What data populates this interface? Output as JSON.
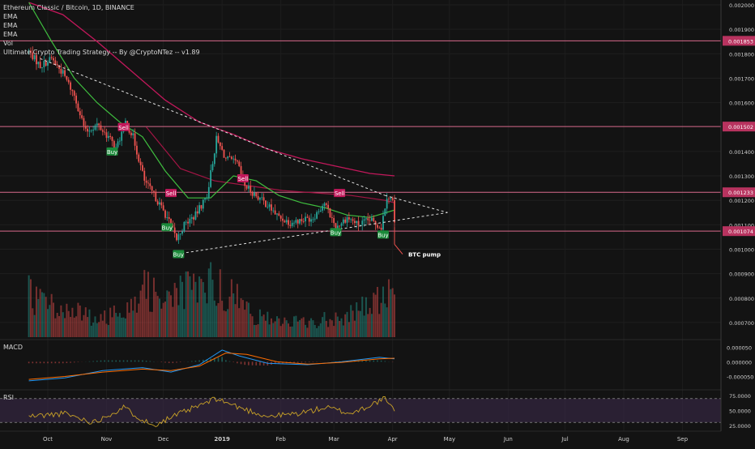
{
  "legend": {
    "title": "Ethereum Classic / Bitcoin, 1D, BINANCE",
    "indicators": [
      "EMA",
      "EMA",
      "EMA",
      "Vol",
      "Ultimate Crypto Trading Strategy -- By @CryptoNTez -- v1.89"
    ]
  },
  "annotation": {
    "text": "BTC pump"
  },
  "colors": {
    "background": "#131313",
    "up": "#26a69a",
    "down": "#ef5350",
    "ema_fast": "#3fbf3f",
    "ema_slow": "#c2185b",
    "hline": "#d76a8c",
    "buy": "#1b8a3a",
    "sell": "#c2185b",
    "macd": "#2196f3",
    "signal": "#ff6d00",
    "rsi": "#c9a227",
    "rsi_band": "#3a2a4a"
  },
  "price_axis": {
    "range": [
      0.00064,
      0.00202
    ],
    "ticks": [
      "0.002000",
      "0.001900",
      "0.001800",
      "0.001700",
      "0.001600",
      "0.001400",
      "0.001300",
      "0.001200",
      "0.001100",
      "0.001000",
      "0.000900",
      "0.000800",
      "0.000700"
    ],
    "tick_values": [
      0.002,
      0.0019,
      0.0018,
      0.0017,
      0.0016,
      0.0014,
      0.0013,
      0.0012,
      0.0011,
      0.001,
      0.0009,
      0.0008,
      0.0007
    ]
  },
  "levels": [
    {
      "label": "0.001853",
      "value": 0.001853
    },
    {
      "label": "0.001502",
      "value": 0.001502
    },
    {
      "label": "0.001233",
      "value": 0.001233
    },
    {
      "label": "0.001074",
      "value": 0.001074
    }
  ],
  "time_axis": {
    "labels": [
      "Oct",
      "Nov",
      "Dec",
      "2019",
      "Feb",
      "Mar",
      "Apr",
      "May",
      "Jun",
      "Jul",
      "Aug",
      "Sep"
    ],
    "bold": [
      "2019"
    ]
  },
  "macd_axis": {
    "ticks": [
      "0.000050",
      "0.000000",
      "-0.000050"
    ],
    "range": [
      -9e-05,
      7e-05
    ],
    "tick_values": [
      5e-05,
      0,
      -5e-05
    ]
  },
  "rsi_axis": {
    "ticks": [
      "75.0000",
      "50.0000",
      "25.0000"
    ],
    "range": [
      18,
      82
    ],
    "tick_values": [
      75,
      50,
      25
    ]
  },
  "chart_data": {
    "type": "candlestick",
    "title": "Ethereum Classic / Bitcoin, 1D, BINANCE",
    "date_range": [
      "2018-09-21",
      "2019-04-02"
    ],
    "signals": [
      {
        "type": "Buy",
        "date": "2018-11-04",
        "price": 0.0014
      },
      {
        "type": "Sell",
        "date": "2018-11-10",
        "price": 0.0015
      },
      {
        "type": "Sell",
        "date": "2018-12-05",
        "price": 0.00123
      },
      {
        "type": "Buy",
        "date": "2018-12-03",
        "price": 0.00109
      },
      {
        "type": "Buy",
        "date": "2018-12-09",
        "price": 0.00098
      },
      {
        "type": "Sell",
        "date": "2019-01-12",
        "price": 0.00129
      },
      {
        "type": "Sell",
        "date": "2019-03-04",
        "price": 0.00123
      },
      {
        "type": "Buy",
        "date": "2019-03-02",
        "price": 0.00107
      },
      {
        "type": "Buy",
        "date": "2019-03-27",
        "price": 0.00106
      }
    ],
    "trendlines": [
      {
        "from": [
          "2018-09-27",
          0.00178
        ],
        "to": [
          "2019-03-28",
          0.00122
        ]
      },
      {
        "from": [
          "2018-12-08",
          0.00098
        ],
        "to": [
          "2019-04-30",
          0.00115
        ]
      }
    ],
    "series_control_points": {
      "close": [
        [
          "2018-09-21",
          0.00181
        ],
        [
          "2018-09-27",
          0.00175
        ],
        [
          "2018-10-03",
          0.00178
        ],
        [
          "2018-10-09",
          0.00172
        ],
        [
          "2018-10-15",
          0.00163
        ],
        [
          "2018-10-21",
          0.00148
        ],
        [
          "2018-10-27",
          0.00151
        ],
        [
          "2018-11-02",
          0.00146
        ],
        [
          "2018-11-06",
          0.00141
        ],
        [
          "2018-11-11",
          0.00152
        ],
        [
          "2018-11-15",
          0.00146
        ],
        [
          "2018-11-21",
          0.00128
        ],
        [
          "2018-11-27",
          0.00121
        ],
        [
          "2018-12-03",
          0.00113
        ],
        [
          "2018-12-08",
          0.00104
        ],
        [
          "2018-12-12",
          0.0011
        ],
        [
          "2018-12-18",
          0.00114
        ],
        [
          "2018-12-24",
          0.00122
        ],
        [
          "2018-12-29",
          0.00145
        ],
        [
          "2019-01-03",
          0.00137
        ],
        [
          "2019-01-09",
          0.00135
        ],
        [
          "2019-01-13",
          0.00126
        ],
        [
          "2019-01-19",
          0.00122
        ],
        [
          "2019-01-25",
          0.00118
        ],
        [
          "2019-01-31",
          0.00113
        ],
        [
          "2019-02-06",
          0.00111
        ],
        [
          "2019-02-12",
          0.00112
        ],
        [
          "2019-02-18",
          0.00113
        ],
        [
          "2019-02-24",
          0.00119
        ],
        [
          "2019-03-02",
          0.00109
        ],
        [
          "2019-03-08",
          0.00113
        ],
        [
          "2019-03-14",
          0.0011
        ],
        [
          "2019-03-20",
          0.00112
        ],
        [
          "2019-03-26",
          0.00109
        ],
        [
          "2019-03-29",
          0.00122
        ],
        [
          "2019-04-01",
          0.0012
        ],
        [
          "2019-04-02",
          0.0011
        ]
      ],
      "ema_fast": [
        [
          "2018-09-21",
          0.00201
        ],
        [
          "2018-10-03",
          0.00185
        ],
        [
          "2018-10-15",
          0.0017
        ],
        [
          "2018-10-27",
          0.0016
        ],
        [
          "2018-11-08",
          0.00152
        ],
        [
          "2018-11-20",
          0.00146
        ],
        [
          "2018-12-02",
          0.00132
        ],
        [
          "2018-12-14",
          0.00121
        ],
        [
          "2018-12-26",
          0.00121
        ],
        [
          "2019-01-07",
          0.0013
        ],
        [
          "2019-01-19",
          0.00128
        ],
        [
          "2019-01-31",
          0.00122
        ],
        [
          "2019-02-12",
          0.00119
        ],
        [
          "2019-02-24",
          0.00117
        ],
        [
          "2019-03-08",
          0.00114
        ],
        [
          "2019-03-20",
          0.00113
        ],
        [
          "2019-04-02",
          0.00116
        ]
      ],
      "ema_slow": [
        [
          "2018-09-21",
          0.00201
        ],
        [
          "2018-10-09",
          0.00196
        ],
        [
          "2018-10-27",
          0.00185
        ],
        [
          "2018-11-14",
          0.00173
        ],
        [
          "2018-12-02",
          0.00161
        ],
        [
          "2018-12-20",
          0.00152
        ],
        [
          "2019-01-07",
          0.00147
        ],
        [
          "2019-01-25",
          0.00141
        ],
        [
          "2019-02-12",
          0.00137
        ],
        [
          "2019-03-02",
          0.00134
        ],
        [
          "2019-03-20",
          0.00131
        ],
        [
          "2019-04-02",
          0.0013
        ]
      ],
      "ema_mid": [
        [
          "2018-11-22",
          0.0015
        ],
        [
          "2018-12-10",
          0.00133
        ],
        [
          "2018-12-28",
          0.00128
        ],
        [
          "2019-01-15",
          0.00126
        ],
        [
          "2019-02-02",
          0.00124
        ],
        [
          "2019-02-20",
          0.00123
        ],
        [
          "2019-03-10",
          0.00122
        ],
        [
          "2019-03-28",
          0.0012
        ],
        [
          "2019-04-02",
          0.00119
        ]
      ],
      "volume_relative": [
        [
          "2018-09-21",
          0.55
        ],
        [
          "2018-10-10",
          0.35
        ],
        [
          "2018-10-30",
          0.22
        ],
        [
          "2018-11-20",
          0.6
        ],
        [
          "2018-12-08",
          0.55
        ],
        [
          "2018-12-29",
          0.7
        ],
        [
          "2019-01-20",
          0.25
        ],
        [
          "2019-02-15",
          0.18
        ],
        [
          "2019-03-10",
          0.3
        ],
        [
          "2019-03-30",
          0.55
        ],
        [
          "2019-04-02",
          0.4
        ]
      ],
      "macd": [
        [
          "2018-09-21",
          -6.5e-05
        ],
        [
          "2018-10-10",
          -5.5e-05
        ],
        [
          "2018-10-30",
          -3e-05
        ],
        [
          "2018-11-20",
          -2e-05
        ],
        [
          "2018-12-05",
          -3.5e-05
        ],
        [
          "2018-12-20",
          -1e-05
        ],
        [
          "2019-01-01",
          4e-05
        ],
        [
          "2019-01-10",
          2e-05
        ],
        [
          "2019-01-25",
          -5e-06
        ],
        [
          "2019-02-15",
          -1e-05
        ],
        [
          "2019-03-05",
          0.0
        ],
        [
          "2019-03-25",
          1.5e-05
        ],
        [
          "2019-04-02",
          1e-05
        ]
      ],
      "signal": [
        [
          "2018-09-21",
          -6e-05
        ],
        [
          "2018-10-10",
          -5e-05
        ],
        [
          "2018-10-30",
          -3.5e-05
        ],
        [
          "2018-11-20",
          -2.5e-05
        ],
        [
          "2018-12-05",
          -3e-05
        ],
        [
          "2018-12-20",
          -1.5e-05
        ],
        [
          "2019-01-03",
          3e-05
        ],
        [
          "2019-01-14",
          2.5e-05
        ],
        [
          "2019-01-30",
          0.0
        ],
        [
          "2019-02-15",
          -8e-06
        ],
        [
          "2019-03-05",
          -2e-06
        ],
        [
          "2019-03-25",
          1e-05
        ],
        [
          "2019-04-02",
          1.2e-05
        ]
      ],
      "rsi": [
        [
          "2018-09-21",
          40
        ],
        [
          "2018-10-10",
          45
        ],
        [
          "2018-10-25",
          30
        ],
        [
          "2018-11-10",
          55
        ],
        [
          "2018-11-25",
          25
        ],
        [
          "2018-12-10",
          45
        ],
        [
          "2018-12-29",
          70
        ],
        [
          "2019-01-10",
          55
        ],
        [
          "2019-01-25",
          40
        ],
        [
          "2019-02-10",
          45
        ],
        [
          "2019-02-25",
          55
        ],
        [
          "2019-03-10",
          45
        ],
        [
          "2019-03-28",
          70
        ],
        [
          "2019-04-02",
          48
        ]
      ]
    }
  }
}
